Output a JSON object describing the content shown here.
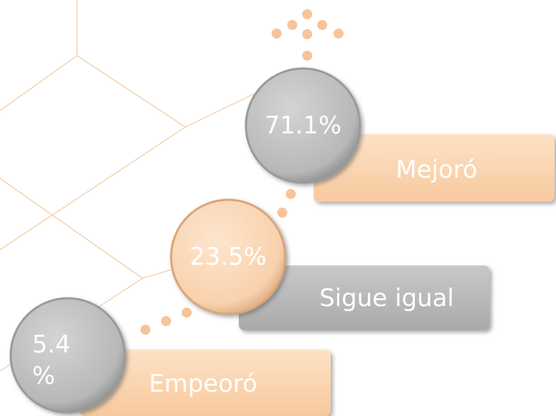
{
  "items": [
    {
      "value": "71.1%",
      "label": "Mejoró"
    },
    {
      "value": "23.5%",
      "label": "Sigue igual"
    },
    {
      "value": "5.4 %",
      "label": "Empeoró"
    }
  ]
}
